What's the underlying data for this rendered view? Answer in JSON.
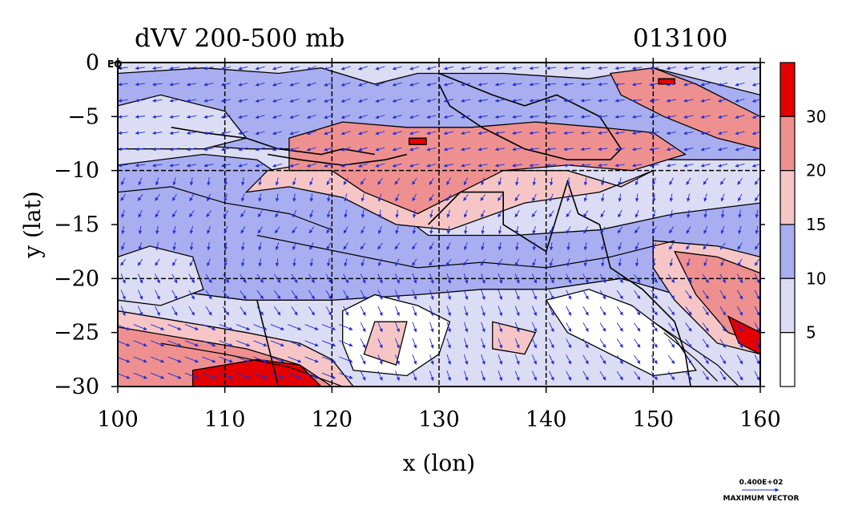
{
  "chart_data": {
    "type": "heatmap",
    "title": "dVV 200-500 mb",
    "subtitle": "013100",
    "xlabel": "x (lon)",
    "ylabel": "y (lat)",
    "xlim": [
      100,
      160
    ],
    "ylim": [
      -30,
      0
    ],
    "x_ticks": [
      100,
      110,
      120,
      130,
      140,
      150,
      160
    ],
    "y_ticks": [
      0,
      -5,
      -10,
      -15,
      -20,
      -25,
      -30
    ],
    "x_tick_labels": [
      "100",
      "110",
      "120",
      "130",
      "140",
      "150",
      "160"
    ],
    "y_tick_labels": [
      "0",
      "−5",
      "−10",
      "−15",
      "−20",
      "−25",
      "−30"
    ],
    "grid_lon": [
      110,
      120,
      130,
      140,
      150
    ],
    "grid_lat": [
      -10,
      -20
    ],
    "corner_label": "EQ",
    "contour_levels": [
      5,
      10,
      15,
      20,
      30
    ],
    "colorbar": {
      "labels": [
        "30",
        "20",
        "15",
        "10",
        "5"
      ],
      "colors": [
        "#ffffff",
        "#dcdcf5",
        "#a9aef0",
        "#f6c6c6",
        "#ee9090",
        "#e50000"
      ]
    },
    "vector_legend": {
      "value": "0.400E+02",
      "label": "MAXIMUM VECTOR"
    },
    "colors": {
      "vector": "#1f2ed6",
      "contour": "#000000"
    }
  }
}
